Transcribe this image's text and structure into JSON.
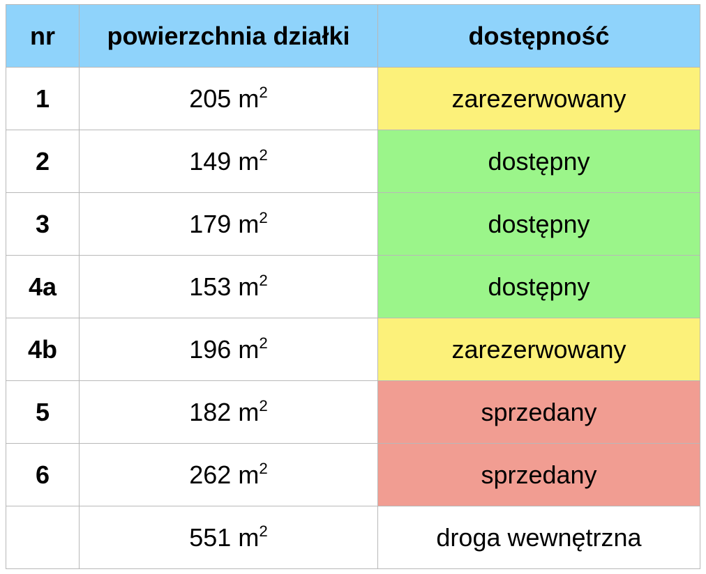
{
  "table": {
    "headers": {
      "nr": "nr",
      "area": "powierzchnia działki",
      "status": "dostępność"
    },
    "status_colors": {
      "zarezerwowany": "#fcf17a",
      "dostępny": "#9bf58a",
      "sprzedany": "#f19d92",
      "droga wewnętrzna": "#ffffff"
    },
    "rows": [
      {
        "nr": "1",
        "area": "205",
        "unit": "m",
        "exp": "2",
        "status": "zarezerwowany"
      },
      {
        "nr": "2",
        "area": "149",
        "unit": "m",
        "exp": "2",
        "status": "dostępny"
      },
      {
        "nr": "3",
        "area": "179",
        "unit": "m",
        "exp": "2",
        "status": "dostępny"
      },
      {
        "nr": "4a",
        "area": "153",
        "unit": "m",
        "exp": "2",
        "status": "dostępny"
      },
      {
        "nr": "4b",
        "area": "196",
        "unit": "m",
        "exp": "2",
        "status": "zarezerwowany"
      },
      {
        "nr": "5",
        "area": "182",
        "unit": "m",
        "exp": "2",
        "status": "sprzedany"
      },
      {
        "nr": "6",
        "area": "262",
        "unit": "m",
        "exp": "2",
        "status": "sprzedany"
      },
      {
        "nr": "",
        "area": "551",
        "unit": "m",
        "exp": "2",
        "status": "droga wewnętrzna"
      }
    ]
  }
}
